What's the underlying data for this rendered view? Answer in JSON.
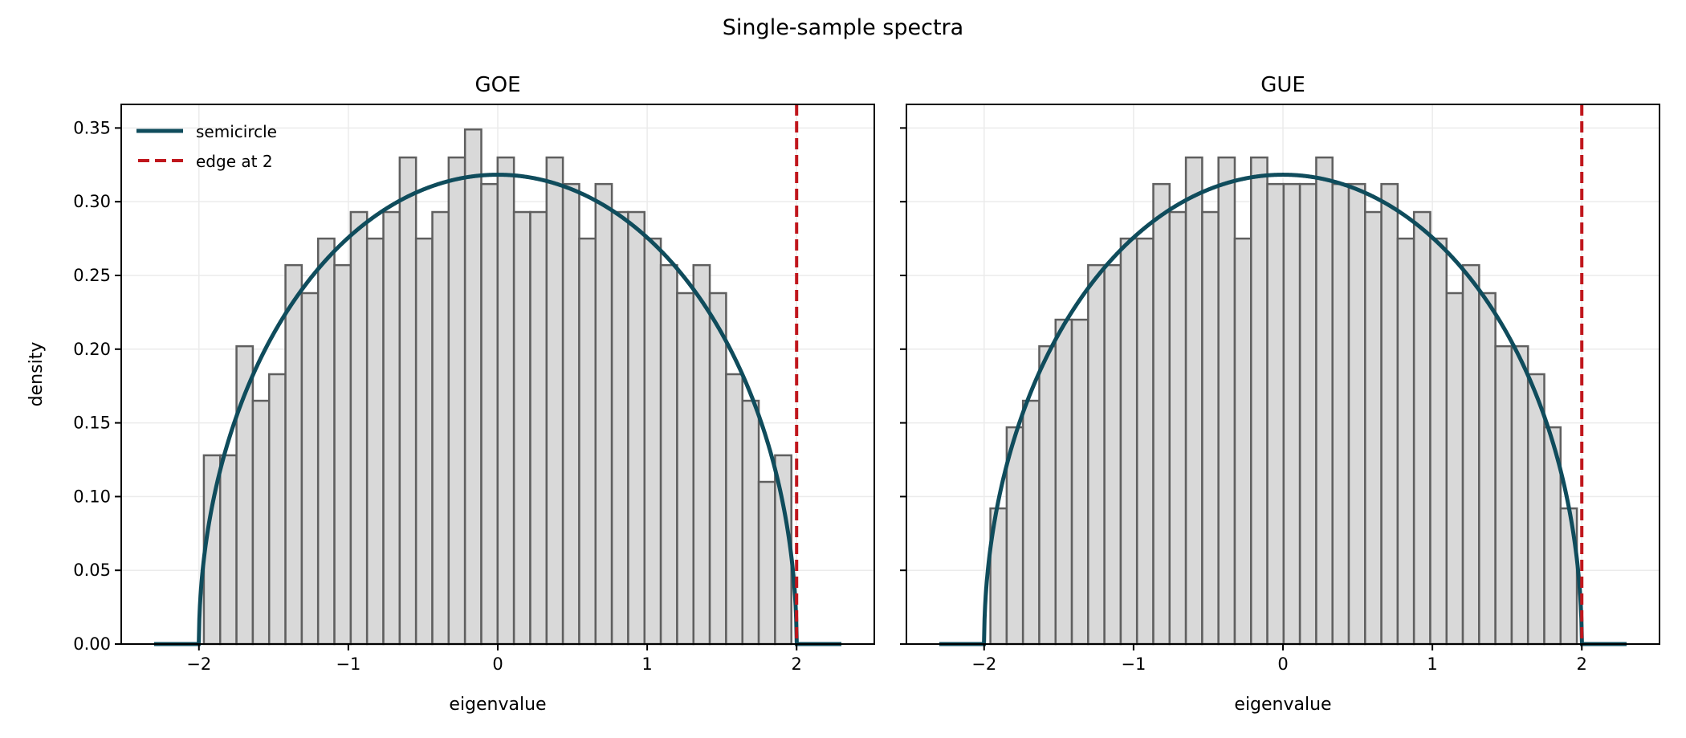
{
  "title": "Single-sample spectra",
  "chart_data": [
    {
      "type": "bar",
      "title": "GOE",
      "xlabel": "eigenvalue",
      "ylabel": "density",
      "xlim": [
        -2.52,
        2.52
      ],
      "ylim": [
        0,
        0.366
      ],
      "xticks": [
        -2,
        -1,
        0,
        1,
        2
      ],
      "xtick_labels": [
        "−2",
        "−1",
        "0",
        "1",
        "2"
      ],
      "yticks": [
        0,
        0.05,
        0.1,
        0.15,
        0.2,
        0.25,
        0.3,
        0.35
      ],
      "ytick_labels": [
        "0.00",
        "0.05",
        "0.10",
        "0.15",
        "0.20",
        "0.25",
        "0.30",
        "0.35"
      ],
      "grid": true,
      "histogram": {
        "range": [
          -1.967,
          1.965
        ],
        "bins": 36,
        "values": [
          0.128,
          0.128,
          0.202,
          0.165,
          0.183,
          0.257,
          0.238,
          0.275,
          0.257,
          0.293,
          0.275,
          0.293,
          0.33,
          0.275,
          0.293,
          0.33,
          0.349,
          0.312,
          0.33,
          0.293,
          0.293,
          0.33,
          0.312,
          0.275,
          0.312,
          0.293,
          0.293,
          0.275,
          0.257,
          0.238,
          0.257,
          0.238,
          0.183,
          0.165,
          0.11,
          0.128
        ],
        "fill": "#d9d9d9",
        "edge": "#5f5f5f"
      },
      "curve": {
        "name": "semicircle",
        "x_range": [
          -2.3,
          2.3
        ],
        "formula": "sqrt(4 - x^2) / (2*pi)",
        "color": "#0f4c5c"
      },
      "vline": {
        "name": "edge at 2",
        "x": 2,
        "color": "#c0161c",
        "style": "dashed"
      },
      "legend": {
        "position": "top-left",
        "entries": [
          "semicircle",
          "edge at 2"
        ]
      }
    },
    {
      "type": "bar",
      "title": "GUE",
      "xlabel": "eigenvalue",
      "ylabel": "",
      "xlim": [
        -2.52,
        2.52
      ],
      "ylim": [
        0,
        0.366
      ],
      "xticks": [
        -2,
        -1,
        0,
        1,
        2
      ],
      "xtick_labels": [
        "−2",
        "−1",
        "0",
        "1",
        "2"
      ],
      "yticks": [
        0,
        0.05,
        0.1,
        0.15,
        0.2,
        0.25,
        0.3,
        0.35
      ],
      "ytick_labels": [],
      "grid": true,
      "histogram": {
        "range": [
          -1.958,
          1.967
        ],
        "bins": 36,
        "values": [
          0.092,
          0.147,
          0.165,
          0.202,
          0.22,
          0.22,
          0.257,
          0.257,
          0.275,
          0.275,
          0.312,
          0.293,
          0.33,
          0.293,
          0.33,
          0.275,
          0.33,
          0.312,
          0.312,
          0.312,
          0.33,
          0.312,
          0.312,
          0.293,
          0.312,
          0.275,
          0.293,
          0.275,
          0.238,
          0.257,
          0.238,
          0.202,
          0.202,
          0.183,
          0.147,
          0.092
        ],
        "fill": "#d9d9d9",
        "edge": "#5f5f5f"
      },
      "curve": {
        "name": "semicircle",
        "x_range": [
          -2.3,
          2.3
        ],
        "formula": "sqrt(4 - x^2) / (2*pi)",
        "color": "#0f4c5c"
      },
      "vline": {
        "name": "edge at 2",
        "x": 2,
        "color": "#c0161c",
        "style": "dashed"
      }
    }
  ]
}
